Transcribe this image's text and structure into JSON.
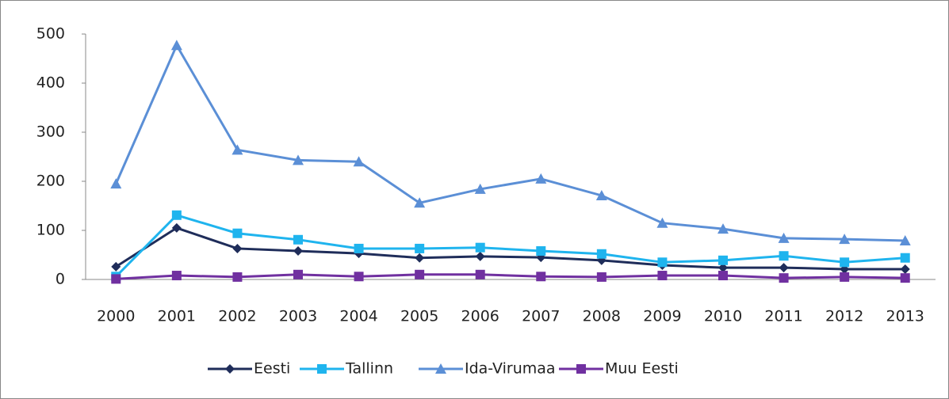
{
  "chart_data": {
    "type": "line",
    "categories": [
      "2000",
      "2001",
      "2002",
      "2003",
      "2004",
      "2005",
      "2006",
      "2007",
      "2008",
      "2009",
      "2010",
      "2011",
      "2012",
      "2013"
    ],
    "series": [
      {
        "name": "Eesti",
        "color": "#1f2d5a",
        "marker": "diamond",
        "values": [
          26,
          105,
          63,
          58,
          53,
          44,
          47,
          45,
          39,
          29,
          24,
          24,
          21,
          21
        ]
      },
      {
        "name": "Tallinn",
        "color": "#1fb4ee",
        "marker": "square",
        "values": [
          6,
          131,
          94,
          81,
          63,
          63,
          65,
          58,
          52,
          35,
          39,
          48,
          35,
          44
        ]
      },
      {
        "name": "Ida-Virumaa",
        "color": "#5b8fd6",
        "marker": "triangle",
        "values": [
          195,
          477,
          264,
          243,
          240,
          156,
          184,
          205,
          171,
          115,
          103,
          84,
          82,
          79
        ]
      },
      {
        "name": "Muu Eesti",
        "color": "#7030a0",
        "marker": "square",
        "values": [
          1,
          8,
          5,
          10,
          6,
          10,
          10,
          6,
          5,
          8,
          8,
          3,
          5,
          3
        ]
      }
    ],
    "ylim": [
      0,
      500
    ],
    "yticks": [
      0,
      100,
      200,
      300,
      400,
      500
    ],
    "grid": false,
    "legend": "bottom"
  }
}
